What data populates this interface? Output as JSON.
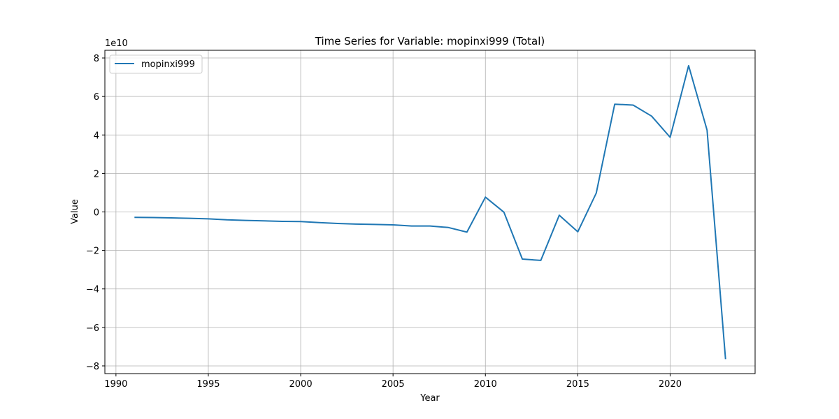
{
  "chart_data": {
    "type": "line",
    "title": "Time Series for Variable: mopinxi999 (Total)",
    "xlabel": "Year",
    "ylabel": "Value",
    "y_offset_label": "1e10",
    "xlim": [
      1989.4,
      2024.6
    ],
    "ylim": [
      -8.4,
      8.4
    ],
    "y_multiplier": 10000000000.0,
    "x_ticks": [
      1990,
      1995,
      2000,
      2005,
      2010,
      2015,
      2020
    ],
    "y_ticks": [
      -8,
      -6,
      -4,
      -2,
      0,
      2,
      4,
      6,
      8
    ],
    "grid": true,
    "legend_position": "upper-left",
    "series": [
      {
        "name": "mopinxi999",
        "color": "#1f77b4",
        "x": [
          1991,
          1992,
          1993,
          1994,
          1995,
          1996,
          1997,
          1998,
          1999,
          2000,
          2001,
          2002,
          2003,
          2004,
          2005,
          2006,
          2007,
          2008,
          2009,
          2010,
          2011,
          2012,
          2013,
          2014,
          2015,
          2016,
          2017,
          2018,
          2019,
          2020,
          2021,
          2022,
          2023
        ],
        "y": [
          -0.28,
          -0.29,
          -0.31,
          -0.33,
          -0.36,
          -0.41,
          -0.44,
          -0.46,
          -0.49,
          -0.5,
          -0.55,
          -0.6,
          -0.63,
          -0.65,
          -0.67,
          -0.73,
          -0.73,
          -0.81,
          -1.05,
          0.77,
          -0.01,
          -2.45,
          -2.52,
          -0.17,
          -1.03,
          0.98,
          5.6,
          5.55,
          4.98,
          3.88,
          7.6,
          4.25,
          -7.65
        ]
      }
    ]
  }
}
